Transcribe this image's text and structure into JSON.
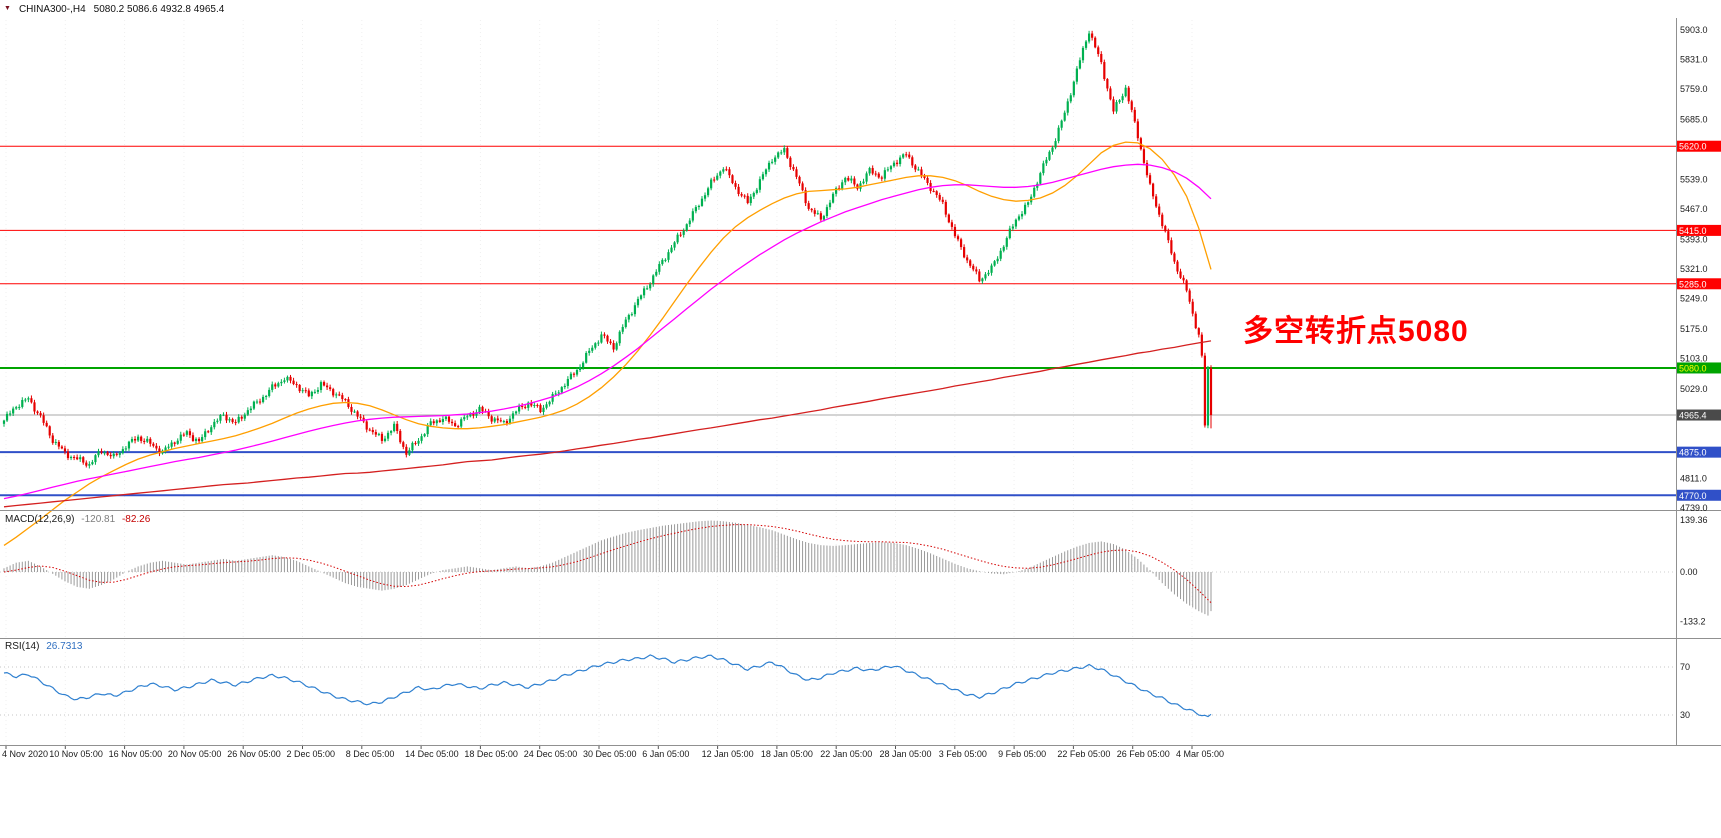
{
  "header": {
    "marker_icon": "▼",
    "symbol": "CHINA300-,H4",
    "ohlc": "5080.2 5086.6 4932.8 4965.4"
  },
  "annotation": {
    "text": "多空转折点5080",
    "color": "#ff0000"
  },
  "time_axis": {
    "labels": [
      "4 Nov 2020",
      "10 Nov 05:00",
      "16 Nov 05:00",
      "20 Nov 05:00",
      "26 Nov 05:00",
      "2 Dec 05:00",
      "8 Dec 05:00",
      "14 Dec 05:00",
      "18 Dec 05:00",
      "24 Dec 05:00",
      "30 Dec 05:00",
      "6 Jan 05:00",
      "12 Jan 05:00",
      "18 Jan 05:00",
      "22 Jan 05:00",
      "28 Jan 05:00",
      "3 Feb 05:00",
      "9 Feb 05:00",
      "22 Feb 05:00",
      "26 Feb 05:00",
      "4 Mar 05:00"
    ]
  },
  "chart_data": [
    {
      "type": "candlestick",
      "title": "CHINA300- H4",
      "up_color": "#00b050",
      "down_color": "#e60000",
      "y_axis": {
        "range": [
          4739,
          5903
        ],
        "ticks": [
          5903.0,
          5831.0,
          5759.0,
          5685.0,
          5539.0,
          5467.0,
          5393.0,
          5321.0,
          5249.0,
          5175.0,
          5103.0,
          5029.0,
          4811.0,
          4739.0
        ]
      },
      "current_ohlc": {
        "open": 5080.2,
        "high": 5086.6,
        "low": 4932.8,
        "close": 4965.4
      },
      "noise_amp": 9,
      "close_path": [
        4952,
        4988,
        5005,
        4960,
        4905,
        4872,
        4858,
        4845,
        4880,
        4862,
        4890,
        4912,
        4895,
        4875,
        4902,
        4922,
        4900,
        4940,
        4965,
        4945,
        4978,
        5002,
        5032,
        5055,
        5038,
        5012,
        5040,
        5022,
        4998,
        4962,
        4930,
        4905,
        4938,
        4872,
        4905,
        4945,
        4958,
        4940,
        4962,
        4980,
        4958,
        4945,
        4975,
        4995,
        4978,
        5008,
        5042,
        5075,
        5120,
        5160,
        5130,
        5195,
        5245,
        5290,
        5340,
        5385,
        5430,
        5480,
        5530,
        5570,
        5520,
        5482,
        5535,
        5590,
        5610,
        5545,
        5470,
        5442,
        5500,
        5545,
        5520,
        5560,
        5545,
        5580,
        5600,
        5558,
        5520,
        5478,
        5402,
        5342,
        5295,
        5322,
        5380,
        5442,
        5480,
        5555,
        5620,
        5700,
        5805,
        5902,
        5820,
        5705,
        5762,
        5645,
        5520,
        5432,
        5338,
        5268,
        5158,
        4965.4
      ],
      "tail_closes": [
        5110,
        4940,
        5080.2
      ],
      "levels": [
        {
          "label": "5620.0",
          "value": 5620.0,
          "line": "#ff0000",
          "bg": "#ff0000",
          "fg": "#ffffff",
          "width": 1
        },
        {
          "label": "5415.0",
          "value": 5415.0,
          "line": "#ff0000",
          "bg": "#ff0000",
          "fg": "#ffffff",
          "width": 1
        },
        {
          "label": "5285.0",
          "value": 5285.0,
          "line": "#ff0000",
          "bg": "#ff0000",
          "fg": "#ffffff",
          "width": 1
        },
        {
          "label": "5080.0",
          "value": 5080.0,
          "line": "#00a400",
          "bg": "#00a400",
          "fg": "#ffff00",
          "width": 2
        },
        {
          "label": "4965.4",
          "value": 4965.4,
          "line": "#aaaaaa",
          "bg": "#4a4a4a",
          "fg": "#ffffff",
          "width": 1
        },
        {
          "label": "4875.0",
          "value": 4875.0,
          "line": "#3050c8",
          "bg": "#3050c8",
          "fg": "#ffffff",
          "width": 2
        },
        {
          "label": "4770.0",
          "value": 4770.0,
          "line": "#3050c8",
          "bg": "#3050c8",
          "fg": "#ffffff",
          "width": 2
        }
      ],
      "moving_averages": [
        {
          "name": "ma-fast",
          "color": "#ff9f00",
          "values": [
            4648,
            4668,
            4690,
            4712,
            4735,
            4758,
            4778,
            4798,
            4815,
            4830,
            4845,
            4858,
            4868,
            4876,
            4884,
            4890,
            4896,
            4902,
            4908,
            4915,
            4924,
            4934,
            4945,
            4958,
            4970,
            4980,
            4988,
            4994,
            4996,
            4994,
            4988,
            4978,
            4966,
            4954,
            4944,
            4938,
            4934,
            4932,
            4932,
            4934,
            4938,
            4942,
            4948,
            4954,
            4960,
            4968,
            4978,
            4992,
            5010,
            5032,
            5058,
            5088,
            5122,
            5160,
            5200,
            5242,
            5284,
            5324,
            5362,
            5396,
            5424,
            5446,
            5464,
            5480,
            5494,
            5504,
            5510,
            5512,
            5514,
            5516,
            5520,
            5526,
            5532,
            5538,
            5544,
            5548,
            5548,
            5544,
            5536,
            5524,
            5510,
            5498,
            5490,
            5486,
            5488,
            5494,
            5506,
            5524,
            5548,
            5576,
            5604,
            5622,
            5630,
            5628,
            5614,
            5588,
            5550,
            5498,
            5420,
            5320
          ]
        },
        {
          "name": "ma-mid",
          "color": "#ff00ff",
          "values": [
            4762,
            4768,
            4775,
            4782,
            4790,
            4797,
            4804,
            4810,
            4816,
            4822,
            4828,
            4834,
            4840,
            4846,
            4852,
            4857,
            4862,
            4868,
            4874,
            4880,
            4887,
            4894,
            4902,
            4910,
            4918,
            4926,
            4933,
            4940,
            4946,
            4951,
            4955,
            4958,
            4960,
            4961,
            4962,
            4963,
            4964,
            4966,
            4968,
            4971,
            4975,
            4980,
            4986,
            4993,
            5001,
            5010,
            5021,
            5034,
            5049,
            5066,
            5085,
            5106,
            5128,
            5152,
            5176,
            5200,
            5224,
            5248,
            5272,
            5294,
            5316,
            5336,
            5356,
            5374,
            5392,
            5408,
            5422,
            5436,
            5448,
            5460,
            5470,
            5480,
            5490,
            5498,
            5506,
            5514,
            5520,
            5524,
            5526,
            5526,
            5524,
            5522,
            5520,
            5520,
            5522,
            5526,
            5532,
            5540,
            5548,
            5556,
            5564,
            5570,
            5574,
            5576,
            5574,
            5568,
            5558,
            5542,
            5520,
            5492
          ]
        },
        {
          "name": "ma-slow",
          "color": "#d42020",
          "values": [
            4742,
            4745,
            4748,
            4751,
            4754,
            4757,
            4760,
            4763,
            4766,
            4769,
            4772,
            4775,
            4778,
            4781,
            4784,
            4787,
            4790,
            4793,
            4796,
            4798,
            4800,
            4803,
            4806,
            4809,
            4812,
            4814,
            4817,
            4820,
            4823,
            4824,
            4826,
            4829,
            4832,
            4835,
            4838,
            4841,
            4844,
            4848,
            4852,
            4854,
            4856,
            4860,
            4864,
            4867,
            4870,
            4874,
            4878,
            4883,
            4887,
            4892,
            4896,
            4901,
            4906,
            4910,
            4915,
            4920,
            4925,
            4930,
            4934,
            4939,
            4944,
            4949,
            4954,
            4958,
            4963,
            4968,
            4973,
            4978,
            4984,
            4989,
            4994,
            4999,
            5005,
            5010,
            5015,
            5020,
            5025,
            5030,
            5036,
            5041,
            5046,
            5051,
            5057,
            5062,
            5067,
            5072,
            5078,
            5083,
            5089,
            5094,
            5100,
            5105,
            5110,
            5116,
            5120,
            5126,
            5130,
            5136,
            5141,
            5146
          ]
        }
      ]
    },
    {
      "type": "bar",
      "label": "MACD(12,26,9)",
      "value_hist": "-120.81",
      "value_signal": "-82.26",
      "hist_color": "#9a9a9a",
      "signal_color": "#d40000",
      "axis_ticks": [
        {
          "label": "139.36",
          "value": 139.36
        },
        {
          "label": "0.00",
          "value": 0
        },
        {
          "label": "-133.2",
          "value": -133.2
        }
      ],
      "hist": [
        10,
        25,
        30,
        15,
        -5,
        -25,
        -40,
        -45,
        -35,
        -20,
        0,
        15,
        25,
        30,
        25,
        20,
        25,
        30,
        35,
        30,
        35,
        40,
        45,
        40,
        30,
        15,
        0,
        -15,
        -30,
        -40,
        -45,
        -50,
        -45,
        -35,
        -20,
        -5,
        5,
        10,
        15,
        10,
        5,
        10,
        15,
        10,
        15,
        25,
        40,
        55,
        70,
        85,
        95,
        105,
        112,
        118,
        124,
        128,
        132,
        136,
        138,
        136,
        132,
        126,
        120,
        112,
        100,
        88,
        78,
        72,
        70,
        72,
        75,
        78,
        80,
        78,
        72,
        62,
        50,
        36,
        22,
        10,
        2,
        -4,
        -6,
        0,
        10,
        25,
        40,
        55,
        68,
        78,
        82,
        75,
        60,
        35,
        5,
        -30,
        -60,
        -85,
        -105,
        -120.81
      ],
      "signal": [
        0,
        5,
        12,
        16,
        12,
        2,
        -10,
        -22,
        -28,
        -27,
        -20,
        -10,
        0,
        8,
        14,
        17,
        19,
        22,
        25,
        27,
        29,
        32,
        36,
        38,
        37,
        32,
        24,
        14,
        2,
        -10,
        -22,
        -32,
        -38,
        -39,
        -35,
        -27,
        -18,
        -10,
        -3,
        1,
        3,
        5,
        8,
        9,
        11,
        14,
        20,
        28,
        38,
        49,
        60,
        70,
        80,
        89,
        97,
        104,
        111,
        117,
        122,
        125,
        127,
        127,
        125,
        122,
        117,
        110,
        102,
        94,
        88,
        84,
        82,
        81,
        81,
        80,
        79,
        75,
        69,
        61,
        51,
        41,
        31,
        22,
        15,
        11,
        10,
        13,
        19,
        27,
        36,
        45,
        53,
        58,
        59,
        54,
        43,
        26,
        5,
        -20,
        -50,
        -82.26
      ]
    },
    {
      "type": "line",
      "label": "RSI(14)",
      "value": "26.7313",
      "color": "#2f80d0",
      "levels": [
        {
          "label": "70",
          "value": 70
        },
        {
          "label": "30",
          "value": 30
        }
      ],
      "values": [
        65,
        62,
        64,
        58,
        52,
        46,
        43,
        45,
        48,
        46,
        49,
        53,
        56,
        54,
        51,
        53,
        56,
        59,
        57,
        55,
        58,
        61,
        63,
        61,
        58,
        54,
        50,
        46,
        43,
        41,
        39,
        41,
        45,
        49,
        53,
        51,
        54,
        56,
        54,
        52,
        55,
        57,
        55,
        53,
        56,
        59,
        63,
        66,
        69,
        72,
        74,
        76,
        77,
        79,
        77,
        74,
        76,
        78,
        79,
        76,
        72,
        68,
        71,
        74,
        69,
        63,
        59,
        61,
        65,
        67,
        69,
        67,
        69,
        71,
        67,
        63,
        59,
        55,
        51,
        47,
        45,
        48,
        52,
        56,
        59,
        62,
        65,
        67,
        69,
        71,
        68,
        63,
        58,
        53,
        48,
        44,
        39,
        35,
        31,
        26.73
      ]
    }
  ]
}
